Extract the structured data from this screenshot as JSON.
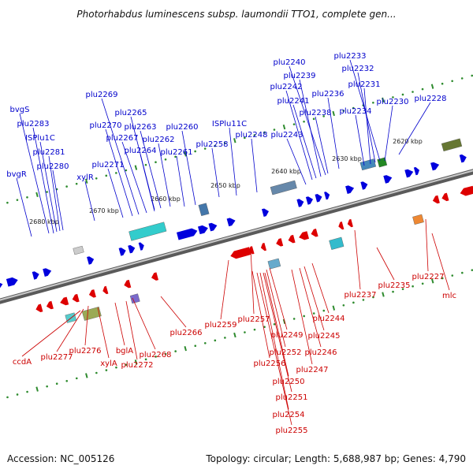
{
  "title": "Photorhabdus luminescens subsp. laumondii TTO1, complete gen...",
  "footer": {
    "accession": "Accession: NC_005126",
    "summary": "Topology: circular; Length: 5,688,987 bp; Genes: 4,790"
  },
  "colors": {
    "forward_strand": "#0000dd",
    "reverse_strand": "#dd0000",
    "label_top": "#0000cc",
    "label_bottom": "#cc0000",
    "backbone": "#8a8a8a",
    "tick": "#2e8b2e"
  },
  "scale_labels": [
    "2620 kbp",
    "2630 kbp",
    "2640 kbp",
    "2650 kbp",
    "2660 kbp",
    "2670 kbp",
    "2680 kbp"
  ],
  "top_labels": [
    "plu2233",
    "plu2240",
    "plu2232",
    "plu2239",
    "plu2231",
    "plu2242",
    "plu2236",
    "plu2241",
    "plu2230",
    "plu2228",
    "plu2238",
    "plu2234",
    "plu2269",
    "bvgS",
    "plu2265",
    "plu2283",
    "plu2270",
    "plu2263",
    "plu2260",
    "ISPlu11C",
    "plu2248",
    "ISPlu1C",
    "plu2267",
    "plu2262",
    "plu2243",
    "plu2258",
    "plu2281",
    "plu2264",
    "plu2261",
    "plu2280",
    "bvgR",
    "plu2271",
    "xylR"
  ],
  "bottom_labels": [
    "plu2227",
    "mlc",
    "plu2237",
    "plu2235",
    "plu2244",
    "plu2257",
    "plu2259",
    "plu2266",
    "plu2245",
    "plu2249",
    "plu2276",
    "bglA",
    "plu2268",
    "plu2246",
    "ccdA",
    "plu2277",
    "plu2252",
    "xylA",
    "plu2272",
    "plu2256",
    "plu2247",
    "plu2250",
    "plu2251",
    "plu2254",
    "plu2255"
  ]
}
